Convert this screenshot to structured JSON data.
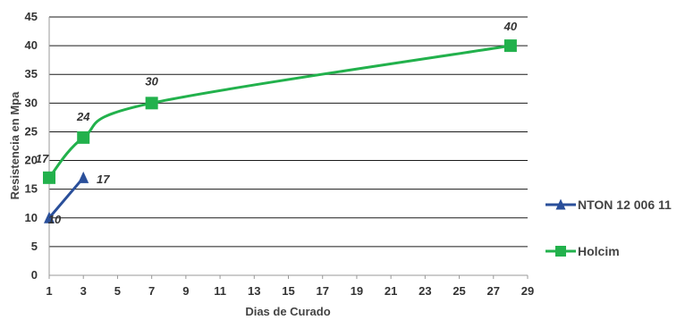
{
  "chart_data": {
    "type": "line",
    "xlabel": "Dias de Curado",
    "ylabel": "Resistencia en Mpa",
    "xlim": [
      1,
      29
    ],
    "ylim": [
      0,
      45
    ],
    "x_ticks": [
      "1",
      "3",
      "5",
      "7",
      "9",
      "11",
      "13",
      "15",
      "17",
      "19",
      "21",
      "23",
      "25",
      "27",
      "29"
    ],
    "y_ticks": [
      "0",
      "5",
      "10",
      "15",
      "20",
      "25",
      "30",
      "35",
      "40",
      "45"
    ],
    "grid": "horizontal",
    "legend_position": "right",
    "series": [
      {
        "name": "NTON 12 006 11",
        "color": "#2a4f9a",
        "marker": "triangle",
        "x": [
          1,
          3
        ],
        "values": [
          10,
          17
        ],
        "data_labels": [
          "10",
          "17"
        ]
      },
      {
        "name": "Holcim",
        "color": "#22b14c",
        "marker": "square",
        "x": [
          1,
          3,
          7,
          28
        ],
        "values": [
          17,
          24,
          30,
          40
        ],
        "data_labels": [
          "17",
          "24",
          "30",
          "40"
        ]
      }
    ]
  }
}
